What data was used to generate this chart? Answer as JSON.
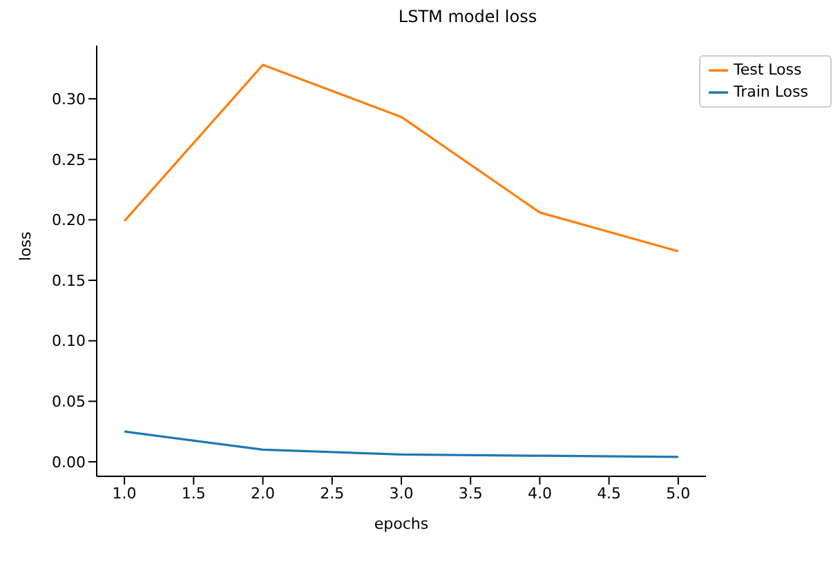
{
  "chart_data": {
    "type": "line",
    "title": "LSTM model loss",
    "xlabel": "epochs",
    "ylabel": "loss",
    "x": [
      1,
      2,
      3,
      4,
      5
    ],
    "series": [
      {
        "name": "Train Loss",
        "color": "#1f77b4",
        "values": [
          0.025,
          0.01,
          0.006,
          0.005,
          0.004
        ]
      },
      {
        "name": "Test Loss",
        "color": "#ff7f0e",
        "values": [
          0.199,
          0.328,
          0.285,
          0.206,
          0.174
        ]
      }
    ],
    "xlim": [
      0.8,
      5.2
    ],
    "xticks": [
      {
        "value": 1,
        "label": "1.0"
      },
      {
        "value": 1.5,
        "label": "1.5"
      },
      {
        "value": 2,
        "label": "2.0"
      },
      {
        "value": 2.5,
        "label": "2.5"
      },
      {
        "value": 3,
        "label": "3.0"
      },
      {
        "value": 3.5,
        "label": "3.5"
      },
      {
        "value": 4,
        "label": "4.0"
      },
      {
        "value": 4.5,
        "label": "4.5"
      },
      {
        "value": 5,
        "label": "5.0"
      }
    ],
    "ylim": [
      -0.012,
      0.344
    ],
    "yticks": [
      {
        "value": 0,
        "label": "0.00"
      },
      {
        "value": 0.05,
        "label": "0.05"
      },
      {
        "value": 0.1,
        "label": "0.10"
      },
      {
        "value": 0.15,
        "label": "0.15"
      },
      {
        "value": 0.2,
        "label": "0.20"
      },
      {
        "value": 0.25,
        "label": "0.25"
      },
      {
        "value": 0.3,
        "label": "0.30"
      }
    ],
    "legend": "top right",
    "grid": false,
    "marker": "none",
    "line_style": "solid"
  }
}
